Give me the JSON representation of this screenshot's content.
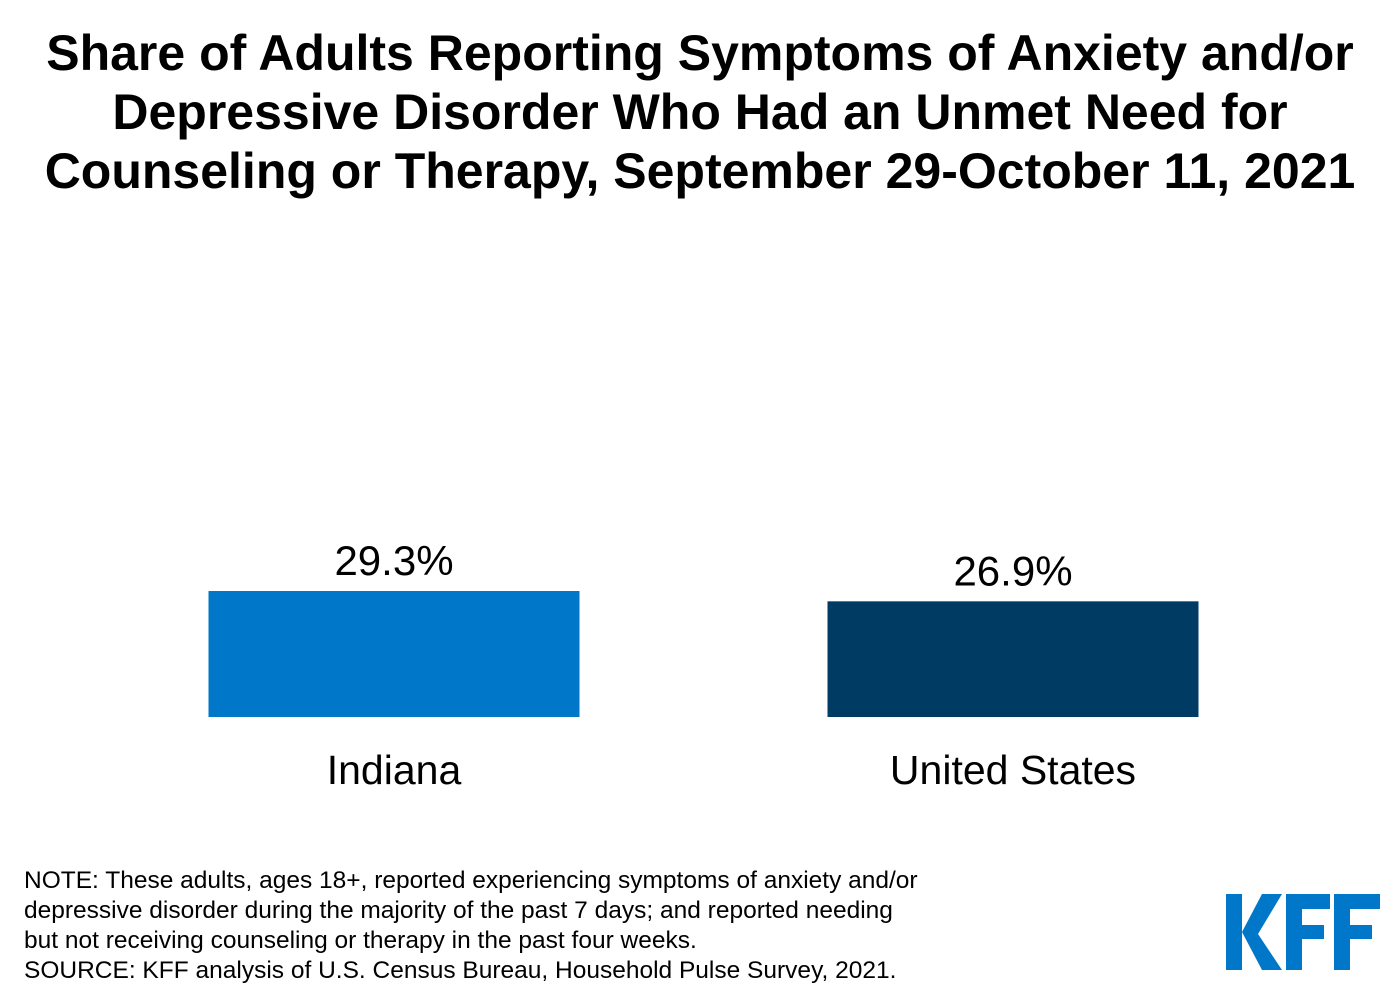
{
  "title_lines": [
    "Share of Adults Reporting Symptoms of Anxiety and/or",
    "Depressive Disorder Who Had an Unmet Need for",
    "Counseling or Therapy, September 29-October 11, 2021"
  ],
  "chart_data": {
    "type": "bar",
    "title": "Share of Adults Reporting Symptoms of Anxiety and/or Depressive Disorder Who Had an Unmet Need for Counseling or Therapy, September 29-October 11, 2021",
    "categories": [
      "Indiana",
      "United States"
    ],
    "values": [
      29.3,
      26.9
    ],
    "value_labels": [
      "29.3%",
      "26.9%"
    ],
    "colors": [
      "#0077C8",
      "#003B63"
    ],
    "xlabel": "",
    "ylabel": "",
    "ylim": [
      0,
      100
    ],
    "grid": false,
    "legend": "none"
  },
  "note_lines": [
    "NOTE: These adults, ages 18+, reported experiencing symptoms of anxiety and/or",
    "depressive disorder during the majority of the past 7 days; and reported needing",
    "but not receiving counseling or therapy in the past four weeks.",
    "SOURCE: KFF analysis of U.S. Census Bureau, Household Pulse Survey, 2021."
  ],
  "logo": {
    "text": "KFF",
    "color": "#0077C8"
  }
}
